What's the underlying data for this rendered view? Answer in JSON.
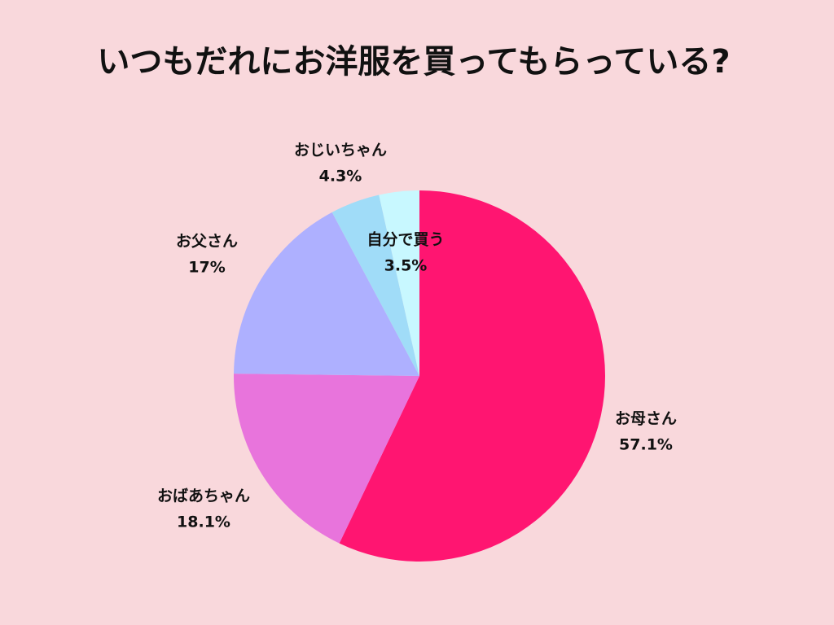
{
  "chart_data": {
    "type": "pie",
    "title": "いつもだれにお洋服を買ってもらっている?",
    "categories": [
      "お母さん",
      "おばあちゃん",
      "お父さん",
      "おじいちゃん",
      "自分で買う"
    ],
    "values": [
      57.1,
      18.1,
      17,
      4.3,
      3.5
    ],
    "value_labels": [
      "57.1%",
      "18.1%",
      "17%",
      "4.3%",
      "3.5%"
    ],
    "colors": [
      "#ff1571",
      "#e874dc",
      "#aeb0ff",
      "#a0dcf8",
      "#c8f8ff"
    ]
  }
}
